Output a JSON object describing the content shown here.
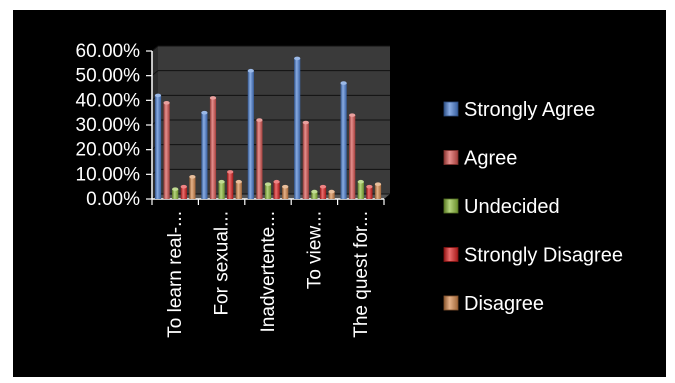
{
  "chart_data": {
    "type": "bar",
    "title": "",
    "xlabel": "",
    "ylabel": "",
    "ylim": [
      0,
      0.6
    ],
    "y_tick_step": 0.1,
    "y_tick_labels": [
      "0.00%",
      "10.00%",
      "20.00%",
      "30.00%",
      "40.00%",
      "50.00%",
      "60.00%"
    ],
    "grid": true,
    "legend_position": "right",
    "categories": [
      "To learn real-...",
      "For sexual...",
      "Inadvertente...",
      "To view...",
      "The quest for..."
    ],
    "series": [
      {
        "name": "Strongly Agree",
        "color": "#4a7fd4",
        "values": [
          0.42,
          0.35,
          0.52,
          0.57,
          0.47
        ]
      },
      {
        "name": "Agree",
        "color": "#d9534f",
        "values": [
          0.39,
          0.41,
          0.32,
          0.31,
          0.34
        ]
      },
      {
        "name": "Undecided",
        "color": "#8fbf3a",
        "values": [
          0.04,
          0.07,
          0.06,
          0.03,
          0.07
        ]
      },
      {
        "name": "Strongly Disagree",
        "color": "#e02020",
        "values": [
          0.05,
          0.11,
          0.07,
          0.05,
          0.05
        ]
      },
      {
        "name": "Disagree",
        "color": "#d7884a",
        "values": [
          0.09,
          0.07,
          0.05,
          0.03,
          0.06
        ]
      }
    ]
  }
}
